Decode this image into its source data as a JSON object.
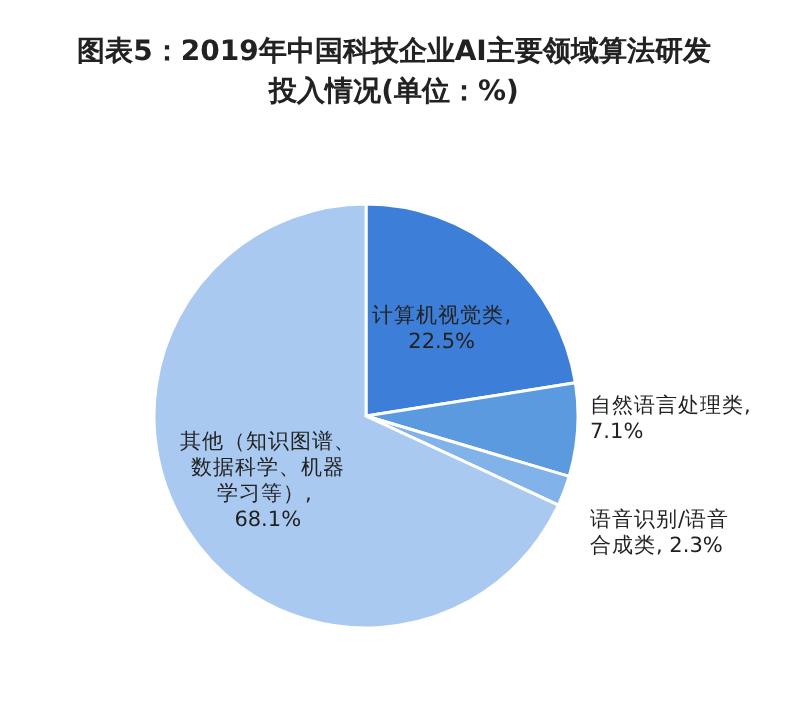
{
  "chart_data": {
    "type": "pie",
    "title": "图表5：2019年中国科技企业AI主要领域算法研发投入情况(单位：%)",
    "categories": [
      "计算机视觉类",
      "自然语言处理类",
      "语音识别/语音合成类",
      "其他（知识图谱、数据科学、机器学习等）"
    ],
    "values": [
      22.5,
      7.1,
      2.3,
      68.1
    ],
    "value_labels": [
      ", 22.5%",
      ", 7.1%",
      ", 2.3%",
      ", 68.1%"
    ],
    "colors": [
      "#3d7fd8",
      "#5c9ae0",
      "#82b2ea",
      "#a9c9f0"
    ]
  }
}
